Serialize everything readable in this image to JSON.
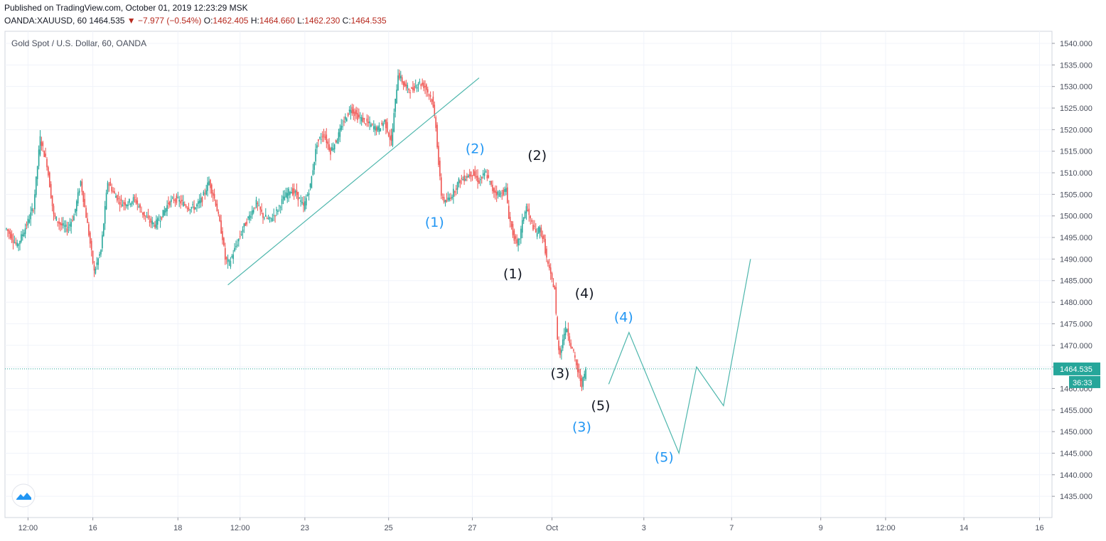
{
  "header": {
    "published": "Published on TradingView.com, October 01, 2019 12:23:29 MSK",
    "symbol": "OANDA:XAUUSD, 60",
    "last": "1464.535",
    "change": "▼ −7.977 (−0.54%)",
    "open_label": "O:",
    "open": "1462.405",
    "high_label": "H:",
    "high": "1464.660",
    "low_label": "L:",
    "low": "1462.230",
    "close_label": "C:",
    "close": "1464.535"
  },
  "chart_data": {
    "type": "candlestick",
    "title": "Gold Spot / U.S. Dollar, 60, OANDA",
    "x_tick_labels": [
      "12:00",
      "16",
      "18",
      "12:00",
      "23",
      "25",
      "27",
      "Oct",
      "3",
      "7",
      "9",
      "12:00",
      "14",
      "16"
    ],
    "y_tick_labels": [
      "1540.000",
      "1535.000",
      "1530.000",
      "1525.000",
      "1520.000",
      "1515.000",
      "1510.000",
      "1505.000",
      "1500.000",
      "1495.000",
      "1490.000",
      "1485.000",
      "1480.000",
      "1475.000",
      "1470.000",
      "1465.000",
      "1460.000",
      "1455.000",
      "1450.000",
      "1445.000",
      "1440.000",
      "1435.000"
    ],
    "ylim": [
      1433,
      1543
    ],
    "last_price": 1464.535,
    "last_price_label": "1464.535",
    "countdown_label": "36:33",
    "grid": true,
    "up_color": "#26a69a",
    "down_color": "#ef5350",
    "line_color": "#4db6ac",
    "price_path": [
      [
        0,
        1497
      ],
      [
        8,
        1493
      ],
      [
        15,
        1498
      ],
      [
        20,
        1502
      ],
      [
        25,
        1518
      ],
      [
        30,
        1512
      ],
      [
        35,
        1500
      ],
      [
        40,
        1498
      ],
      [
        45,
        1497
      ],
      [
        50,
        1500
      ],
      [
        55,
        1508
      ],
      [
        60,
        1498
      ],
      [
        65,
        1487
      ],
      [
        70,
        1492
      ],
      [
        75,
        1508
      ],
      [
        80,
        1505
      ],
      [
        85,
        1503
      ],
      [
        90,
        1503
      ],
      [
        95,
        1504
      ],
      [
        100,
        1501
      ],
      [
        105,
        1499
      ],
      [
        110,
        1498
      ],
      [
        115,
        1500
      ],
      [
        120,
        1503
      ],
      [
        125,
        1504
      ],
      [
        130,
        1503
      ],
      [
        135,
        1502
      ],
      [
        140,
        1502
      ],
      [
        145,
        1504
      ],
      [
        150,
        1508
      ],
      [
        155,
        1503
      ],
      [
        160,
        1495
      ],
      [
        162,
        1490
      ],
      [
        165,
        1489
      ],
      [
        170,
        1493
      ],
      [
        175,
        1497
      ],
      [
        180,
        1500
      ],
      [
        185,
        1503
      ],
      [
        190,
        1500
      ],
      [
        195,
        1499
      ],
      [
        200,
        1501
      ],
      [
        205,
        1504
      ],
      [
        210,
        1506
      ],
      [
        215,
        1505
      ],
      [
        220,
        1502
      ],
      [
        225,
        1507
      ],
      [
        230,
        1517
      ],
      [
        235,
        1519
      ],
      [
        240,
        1515
      ],
      [
        245,
        1518
      ],
      [
        250,
        1522
      ],
      [
        255,
        1525
      ],
      [
        260,
        1523
      ],
      [
        265,
        1522
      ],
      [
        270,
        1521
      ],
      [
        275,
        1520
      ],
      [
        280,
        1522
      ],
      [
        285,
        1517
      ],
      [
        290,
        1533
      ],
      [
        295,
        1530
      ],
      [
        300,
        1529
      ],
      [
        305,
        1531
      ],
      [
        310,
        1530
      ],
      [
        315,
        1527
      ],
      [
        318,
        1521
      ],
      [
        320,
        1512
      ],
      [
        322,
        1505
      ],
      [
        325,
        1503
      ],
      [
        330,
        1505
      ],
      [
        335,
        1508
      ],
      [
        340,
        1509
      ],
      [
        345,
        1510
      ],
      [
        350,
        1508
      ],
      [
        355,
        1510
      ],
      [
        360,
        1506
      ],
      [
        365,
        1505
      ],
      [
        370,
        1506
      ],
      [
        372,
        1500
      ],
      [
        375,
        1496
      ],
      [
        378,
        1493
      ],
      [
        380,
        1495
      ],
      [
        383,
        1500
      ],
      [
        385,
        1502
      ],
      [
        388,
        1499
      ],
      [
        392,
        1496
      ],
      [
        395,
        1497
      ],
      [
        398,
        1494
      ],
      [
        400,
        1490
      ],
      [
        403,
        1486
      ],
      [
        406,
        1483
      ],
      [
        408,
        1471
      ],
      [
        410,
        1468
      ],
      [
        413,
        1473
      ],
      [
        415,
        1474
      ],
      [
        418,
        1470
      ],
      [
        420,
        1468
      ],
      [
        423,
        1464
      ],
      [
        426,
        1461
      ],
      [
        429,
        1464
      ]
    ],
    "trendline": [
      [
        164,
        1484
      ],
      [
        350,
        1532
      ]
    ],
    "projection": [
      [
        446,
        1461
      ],
      [
        461,
        1473
      ],
      [
        498,
        1445
      ],
      [
        511,
        1465
      ],
      [
        531,
        1456
      ],
      [
        551,
        1490
      ]
    ],
    "wave_labels": [
      {
        "text": "(1)",
        "x": 317,
        "y": 1497.5,
        "color": "#2196f3"
      },
      {
        "text": "(2)",
        "x": 347,
        "y": 1514.5,
        "color": "#2196f3"
      },
      {
        "text": "(2)",
        "x": 393,
        "y": 1513,
        "color": "#131722"
      },
      {
        "text": "(1)",
        "x": 375,
        "y": 1485.5,
        "color": "#131722"
      },
      {
        "text": "(4)",
        "x": 428,
        "y": 1481,
        "color": "#131722"
      },
      {
        "text": "(4)",
        "x": 457,
        "y": 1475.5,
        "color": "#2196f3"
      },
      {
        "text": "(3)",
        "x": 410,
        "y": 1462.5,
        "color": "#131722"
      },
      {
        "text": "(5)",
        "x": 440,
        "y": 1455,
        "color": "#131722"
      },
      {
        "text": "(3)",
        "x": 426,
        "y": 1450,
        "color": "#2196f3"
      },
      {
        "text": "(5)",
        "x": 487,
        "y": 1443,
        "color": "#2196f3"
      }
    ]
  }
}
